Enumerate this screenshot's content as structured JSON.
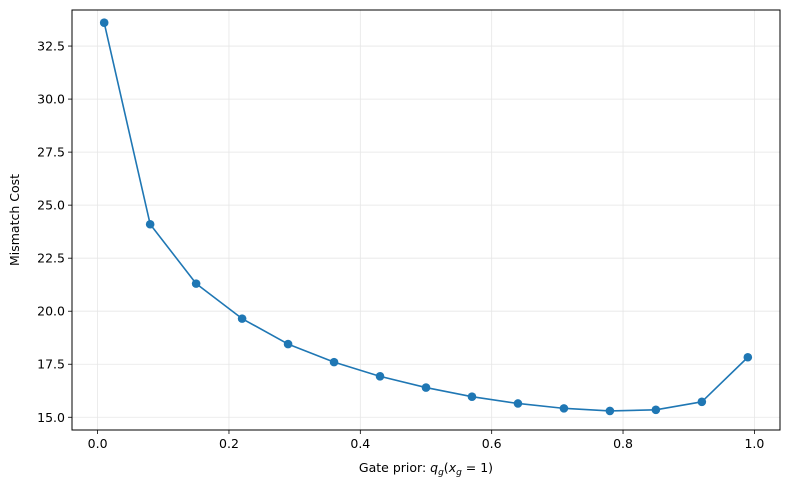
{
  "chart_data": {
    "type": "line",
    "title": "",
    "xlabel": {
      "prefix": "Gate prior: ",
      "q": "q",
      "q_sub": "g",
      "open": "(",
      "x": "x",
      "x_sub": "g",
      "rest": " = 1)"
    },
    "ylabel": "Mismatch Cost",
    "xlim": [
      -0.039,
      1.039
    ],
    "ylim": [
      14.4,
      34.2
    ],
    "x_ticks": [
      0.0,
      0.2,
      0.4,
      0.6,
      0.8,
      1.0
    ],
    "x_tick_labels": [
      "0.0",
      "0.2",
      "0.4",
      "0.6",
      "0.8",
      "1.0"
    ],
    "y_ticks": [
      15.0,
      17.5,
      20.0,
      22.5,
      25.0,
      27.5,
      30.0,
      32.5
    ],
    "y_tick_labels": [
      "15.0",
      "17.5",
      "20.0",
      "22.5",
      "25.0",
      "27.5",
      "30.0",
      "32.5"
    ],
    "grid": true,
    "series": [
      {
        "color": "#1f77b4",
        "marker": "circle",
        "x": [
          0.01,
          0.08,
          0.15,
          0.22,
          0.29,
          0.36,
          0.43,
          0.5,
          0.57,
          0.64,
          0.71,
          0.78,
          0.85,
          0.92,
          0.99
        ],
        "y": [
          33.6,
          24.1,
          21.3,
          19.65,
          18.45,
          17.6,
          16.93,
          16.4,
          15.97,
          15.65,
          15.42,
          15.3,
          15.35,
          15.73,
          17.83
        ]
      }
    ]
  }
}
